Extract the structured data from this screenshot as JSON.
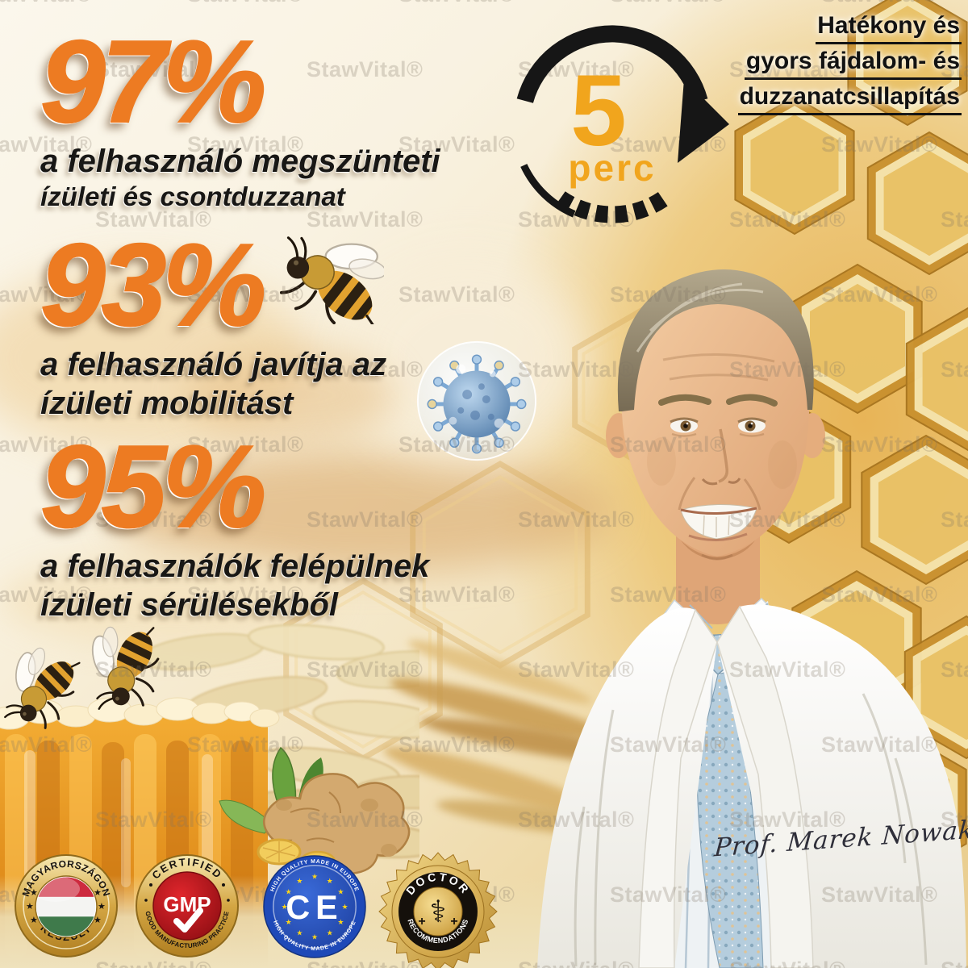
{
  "brand": {
    "watermark": "StawVital®"
  },
  "headline": {
    "lines": [
      "Hatékony és",
      "gyors fájdalom- és",
      "duzzanatcsillapítás"
    ]
  },
  "timer": {
    "value": "5",
    "unit": "perc"
  },
  "stats": [
    {
      "value": "97%",
      "caption_lines": [
        "a felhasználó megszünteti",
        "ízületi és csontduzzanat"
      ]
    },
    {
      "value": "93%",
      "caption_lines": [
        "a felhasználó javítja az",
        "ízületi mobilitást"
      ]
    },
    {
      "value": "95%",
      "caption_lines": [
        "a felhasználók felépülnek",
        "ízületi sérülésekből"
      ]
    }
  ],
  "signature": {
    "text": "Prof. Marek Nowak"
  },
  "badges": {
    "hungary": {
      "arc_top": "MAGYARORSZÁGON",
      "arc_bottom": "KÉSZÜLT"
    },
    "gmp": {
      "arc_top": "CERTIFIED",
      "arc_bottom": "GOOD MANUFACTURING PRACTICE",
      "center": "GMP"
    },
    "ce": {
      "center": "CE",
      "arc_top": "HIGH QUALITY MADE IN EUROPE",
      "arc_bottom": "HIGH QUALITY MADE IN EUROPE"
    },
    "doctor": {
      "arc_top": "DOCTOR",
      "arc_bottom": "RECOMMENDATIONS"
    }
  },
  "colors": {
    "accent_orange": "#ed7b22",
    "timer_orange": "#f1a51d",
    "text_black": "#161616",
    "gold": "#d7a23a",
    "badge_red": "#c9161d",
    "eu_blue": "#2653c3",
    "flag_red": "#cd2a3e",
    "flag_green": "#3f7a4b"
  }
}
